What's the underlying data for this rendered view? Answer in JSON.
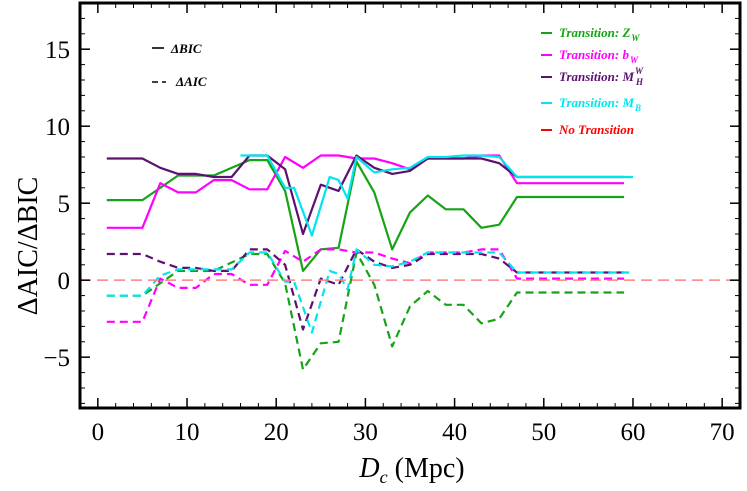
{
  "chart_data": {
    "type": "line",
    "xlabel_italic": "D",
    "xlabel_sub": "c",
    "xlabel_rest": " (Mpc)",
    "ylabel": "ΔAIC/ΔBIC",
    "xlim": [
      -2,
      72
    ],
    "ylim": [
      -8.3,
      18
    ],
    "xticks": [
      0,
      10,
      20,
      30,
      40,
      50,
      60,
      70
    ],
    "yticks": [
      -5,
      0,
      5,
      10,
      15
    ],
    "reference_line": {
      "y": 0,
      "label": "No Transition",
      "color": "#ff8080"
    },
    "style_legend": [
      {
        "label": "ΔBIC",
        "dash": "solid"
      },
      {
        "label": "ΔAIC",
        "dash": "dashed"
      }
    ],
    "color_legend": [
      {
        "label": "Transition: Z",
        "sub": "W",
        "sup": "",
        "color": "#16a316"
      },
      {
        "label": "Transition: b",
        "sub": "W",
        "sup": "",
        "color": "#ff00ff"
      },
      {
        "label": "Transition: M",
        "sub": "H",
        "sup": "W",
        "color": "#5c1070"
      },
      {
        "label": "Transition: M",
        "sub": "B",
        "sup": "",
        "color": "#00e5ee"
      },
      {
        "label": "No Transition",
        "sub": "",
        "sup": "",
        "color": "#ff0000"
      }
    ],
    "series": [
      {
        "color": "#16a316",
        "dash": "solid",
        "x": [
          1,
          5,
          9,
          13,
          17,
          19,
          21,
          23,
          25,
          27,
          29,
          31,
          33,
          35,
          37,
          39,
          41,
          43,
          45,
          47,
          59
        ],
        "y": [
          5.2,
          5.2,
          6.8,
          6.8,
          7.8,
          7.8,
          5.8,
          0.6,
          2.0,
          2.1,
          7.7,
          5.7,
          2.0,
          4.4,
          5.5,
          4.6,
          4.6,
          3.4,
          3.6,
          5.4,
          5.4
        ]
      },
      {
        "color": "#ff00ff",
        "dash": "solid",
        "x": [
          1,
          5,
          7,
          9,
          11,
          13,
          15,
          17,
          19,
          21,
          23,
          25,
          27,
          29,
          31,
          33,
          35,
          37,
          39,
          41,
          43,
          45,
          47,
          59
        ],
        "y": [
          3.4,
          3.4,
          6.3,
          5.7,
          5.7,
          6.5,
          6.5,
          5.9,
          5.9,
          8.0,
          7.3,
          8.1,
          8.1,
          7.9,
          7.9,
          7.6,
          7.2,
          7.9,
          7.9,
          7.9,
          8.1,
          8.1,
          6.3,
          6.3
        ]
      },
      {
        "color": "#5c1070",
        "dash": "solid",
        "x": [
          1,
          5,
          7,
          9,
          11,
          13,
          15,
          17,
          19,
          21,
          23,
          25,
          27,
          29,
          31,
          33,
          35,
          37,
          39,
          41,
          43,
          45,
          47,
          59
        ],
        "y": [
          7.9,
          7.9,
          7.3,
          6.9,
          6.9,
          6.7,
          6.7,
          8.1,
          8.1,
          7.2,
          3.0,
          6.2,
          5.8,
          8.1,
          7.3,
          6.9,
          7.1,
          7.9,
          7.9,
          7.9,
          7.9,
          7.6,
          6.7,
          6.7
        ]
      },
      {
        "color": "#00e5ee",
        "dash": "solid",
        "x": [
          16,
          17,
          19,
          21,
          22,
          24,
          26,
          27,
          28,
          29,
          31,
          33,
          35,
          37,
          39,
          41,
          43,
          45,
          47,
          60
        ],
        "y": [
          8.1,
          8.1,
          8.1,
          6.0,
          6.0,
          2.9,
          6.7,
          6.5,
          5.3,
          8.0,
          7.0,
          7.2,
          7.3,
          8.0,
          8.0,
          8.1,
          8.1,
          8.0,
          6.7,
          6.7
        ]
      },
      {
        "color": "#16a316",
        "dash": "dashed",
        "x": [
          1,
          5,
          9,
          13,
          17,
          19,
          21,
          23,
          25,
          27,
          29,
          31,
          33,
          35,
          37,
          39,
          41,
          43,
          45,
          47,
          59
        ],
        "y": [
          -1.0,
          -1.0,
          0.6,
          0.6,
          1.7,
          1.7,
          -0.2,
          -5.8,
          -4.1,
          -4.0,
          1.8,
          -0.3,
          -4.3,
          -1.7,
          -0.7,
          -1.6,
          -1.6,
          -2.8,
          -2.5,
          -0.8,
          -0.8
        ]
      },
      {
        "color": "#ff00ff",
        "dash": "dashed",
        "x": [
          1,
          5,
          7,
          9,
          11,
          13,
          15,
          17,
          19,
          21,
          23,
          25,
          27,
          29,
          31,
          33,
          35,
          37,
          39,
          41,
          43,
          45,
          47,
          59
        ],
        "y": [
          -2.7,
          -2.7,
          0.1,
          -0.5,
          -0.5,
          0.4,
          0.4,
          -0.3,
          -0.3,
          1.9,
          1.2,
          2.0,
          2.0,
          1.8,
          1.8,
          1.4,
          1.1,
          1.8,
          1.8,
          1.8,
          2.0,
          2.0,
          0.1,
          0.1
        ]
      },
      {
        "color": "#5c1070",
        "dash": "dashed",
        "x": [
          1,
          5,
          7,
          9,
          11,
          13,
          15,
          17,
          19,
          21,
          23,
          25,
          27,
          29,
          31,
          33,
          35,
          37,
          39,
          41,
          43,
          45,
          47,
          59
        ],
        "y": [
          1.7,
          1.7,
          1.2,
          0.8,
          0.8,
          0.6,
          0.6,
          2.0,
          2.0,
          1.0,
          -3.2,
          0.1,
          -0.3,
          2.0,
          1.2,
          0.8,
          1.0,
          1.7,
          1.7,
          1.7,
          1.7,
          1.4,
          0.5,
          0.5
        ]
      },
      {
        "color": "#00e5ee",
        "dash": "dashed",
        "x": [
          1,
          5,
          7,
          9,
          13,
          15,
          17,
          19,
          21,
          22,
          24,
          26,
          27,
          28,
          29,
          31,
          33,
          35,
          37,
          39,
          41,
          43,
          45,
          47,
          60
        ],
        "y": [
          -1.0,
          -1.0,
          0.3,
          0.7,
          0.7,
          0.7,
          1.8,
          1.8,
          -0.1,
          -0.1,
          -3.4,
          0.6,
          0.4,
          -0.6,
          2.0,
          1.0,
          0.9,
          1.2,
          1.8,
          1.8,
          1.8,
          1.8,
          1.8,
          0.5,
          0.5
        ]
      }
    ]
  }
}
